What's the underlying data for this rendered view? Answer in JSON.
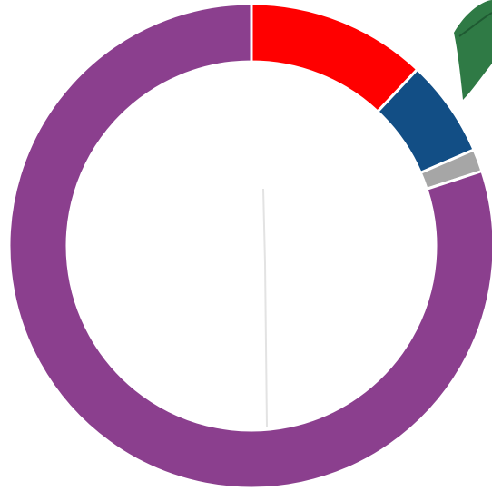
{
  "chart_data": {
    "type": "donut",
    "categories": [
      null,
      null,
      null,
      null
    ],
    "values": [
      12,
      6.5,
      1.5,
      80
    ],
    "colors": [
      "#ff0000",
      "#124e85",
      "#a6a6a6",
      "#8b3f8e"
    ]
  }
}
